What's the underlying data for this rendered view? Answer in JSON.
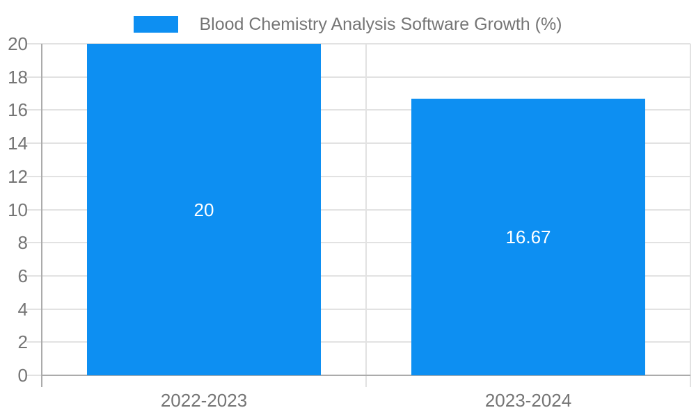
{
  "chart_data": {
    "type": "bar",
    "title": "Blood Chemistry Analysis Software Growth (%)",
    "categories": [
      "2022-2023",
      "2023-2024"
    ],
    "values": [
      20,
      16.67
    ],
    "bar_labels": [
      "20",
      "16.67"
    ],
    "ylim": [
      0,
      20
    ],
    "ytick_step": 2,
    "ytick_labels": [
      "0",
      "2",
      "4",
      "6",
      "8",
      "10",
      "12",
      "14",
      "16",
      "18",
      "20"
    ],
    "grid": true,
    "legend_position": "top-center",
    "xlabel": "",
    "ylabel": "",
    "colors": {
      "bar": "#0d8ff2",
      "grid": "#e2e2e2",
      "axis": "#ababab",
      "tick_label": "#757575",
      "bar_label": "#ffffff",
      "legend_text": "#757575",
      "background": "#ffffff"
    }
  }
}
